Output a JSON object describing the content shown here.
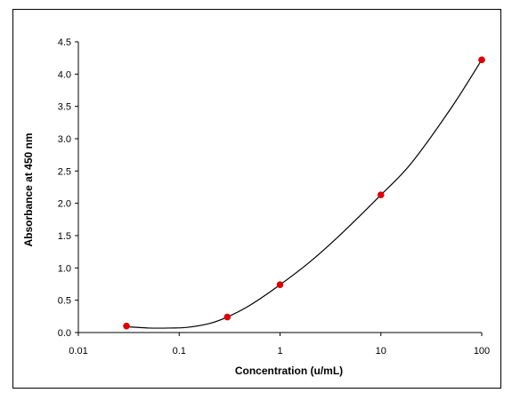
{
  "chart_data": {
    "type": "scatter",
    "title": "",
    "xlabel": "Concentration (u/mL)",
    "ylabel": "Absorbance at 450 nm",
    "x_scale": "log",
    "xlim": [
      0.01,
      100
    ],
    "ylim": [
      0,
      4.5
    ],
    "x_ticks": [
      "0.01",
      "0.1",
      "1",
      "10",
      "100"
    ],
    "y_ticks": [
      "0.0",
      "0.5",
      "1.0",
      "1.5",
      "2.0",
      "2.5",
      "3.0",
      "3.5",
      "4.0",
      "4.5"
    ],
    "grid": false,
    "legend": false,
    "marker_color": "#e00000",
    "curve_color": "#000000",
    "series": [
      {
        "x": [
          0.03,
          0.3,
          1,
          10,
          100
        ],
        "y": [
          0.1,
          0.24,
          0.74,
          2.13,
          4.22
        ]
      }
    ],
    "fit_curve": {
      "x": [
        0.03,
        0.05,
        0.08,
        0.12,
        0.2,
        0.3,
        0.5,
        1,
        2,
        4,
        10,
        20,
        50,
        100
      ],
      "y": [
        0.09,
        0.07,
        0.07,
        0.08,
        0.14,
        0.24,
        0.42,
        0.74,
        1.1,
        1.52,
        2.13,
        2.62,
        3.48,
        4.22
      ]
    }
  }
}
